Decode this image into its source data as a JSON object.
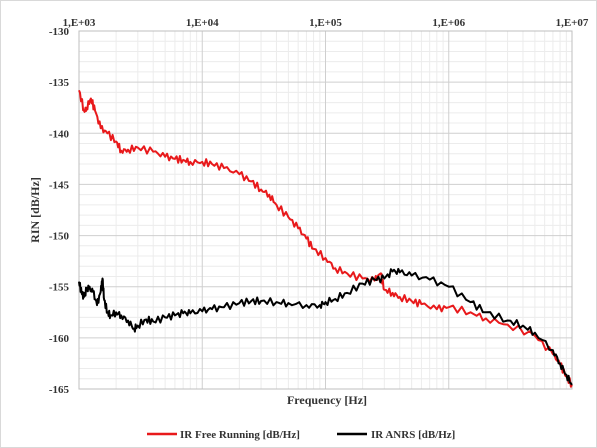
{
  "chart_data": {
    "type": "line",
    "xlabel": "Frequency  [Hz]",
    "ylabel": "RIN [dB/Hz]",
    "x_scale": "log",
    "xlim": [
      1000,
      10000000
    ],
    "ylim": [
      -165,
      -130
    ],
    "x_ticks": [
      {
        "value": 1000,
        "label": "1,E+03"
      },
      {
        "value": 10000,
        "label": "1,E+04"
      },
      {
        "value": 100000,
        "label": "1,E+05"
      },
      {
        "value": 1000000,
        "label": "1,E+06"
      },
      {
        "value": 10000000,
        "label": "1,E+07"
      }
    ],
    "y_ticks": [
      {
        "value": -130,
        "label": "-130"
      },
      {
        "value": -135,
        "label": "-135"
      },
      {
        "value": -140,
        "label": "-140"
      },
      {
        "value": -145,
        "label": "-145"
      },
      {
        "value": -150,
        "label": "-150"
      },
      {
        "value": -155,
        "label": "-155"
      },
      {
        "value": -160,
        "label": "-160"
      },
      {
        "value": -165,
        "label": "-165"
      }
    ],
    "grid": true,
    "minor_grid": true,
    "legend_position": "bottom",
    "series": [
      {
        "name": "IR Free Running [dB/Hz]",
        "color": "#e8191b",
        "x": [
          1000,
          1100,
          1150,
          1250,
          1350,
          1500,
          1700,
          2000,
          2200,
          2500,
          3000,
          4000,
          5000,
          6000,
          7000,
          8000,
          10000,
          12000,
          15000,
          20000,
          25000,
          30000,
          35000,
          40000,
          50000,
          60000,
          70000,
          80000,
          100000,
          120000,
          150000,
          200000,
          250000,
          280000,
          300000,
          350000,
          400000,
          500000,
          600000,
          800000,
          1000000,
          1500000,
          2000000,
          3000000,
          5000000,
          7000000,
          8000000,
          9000000,
          10000000
        ],
        "y": [
          -135.8,
          -137.8,
          -137.5,
          -136.6,
          -137.8,
          -139.5,
          -140,
          -140.8,
          -141.7,
          -141.6,
          -141.4,
          -141.8,
          -142.3,
          -142.5,
          -142.6,
          -142.8,
          -142.8,
          -143,
          -143.4,
          -144,
          -144.7,
          -145.5,
          -146,
          -147,
          -148.2,
          -149.3,
          -150.3,
          -151.3,
          -152.2,
          -153.2,
          -153.7,
          -154.2,
          -154.4,
          -153.7,
          -155.3,
          -155.6,
          -156,
          -156.4,
          -156.7,
          -157.2,
          -157,
          -157.5,
          -158.1,
          -158.7,
          -159.8,
          -161.6,
          -162.6,
          -163.8,
          -164.6
        ]
      },
      {
        "name": "IR ANRS [dB/Hz]",
        "color": "#000000",
        "x": [
          1000,
          1050,
          1100,
          1150,
          1200,
          1300,
          1400,
          1500,
          1550,
          1600,
          1700,
          1800,
          2000,
          2200,
          2500,
          2800,
          3000,
          3500,
          4000,
          5000,
          6000,
          7000,
          8000,
          10000,
          12000,
          15000,
          20000,
          25000,
          30000,
          40000,
          50000,
          70000,
          90000,
          100000,
          120000,
          150000,
          200000,
          250000,
          300000,
          350000,
          400000,
          500000,
          700000,
          1000000,
          1500000,
          2000000,
          3000000,
          4000000,
          5000000,
          7000000,
          8000000,
          9000000,
          10000000
        ],
        "y": [
          -154.5,
          -155.6,
          -156,
          -155.3,
          -155.2,
          -155.5,
          -156.8,
          -155.5,
          -154.2,
          -156.3,
          -157.5,
          -157.8,
          -157.5,
          -157.8,
          -158.3,
          -159.1,
          -158.8,
          -158.2,
          -158.4,
          -158,
          -157.8,
          -157.6,
          -157.6,
          -157.4,
          -157.2,
          -157,
          -156.6,
          -156.4,
          -156.4,
          -156.5,
          -156.6,
          -156.8,
          -156.8,
          -156.5,
          -156.2,
          -155.6,
          -154.7,
          -154.3,
          -154.2,
          -153.5,
          -153.6,
          -153.9,
          -154.3,
          -155,
          -156.5,
          -157.5,
          -158.3,
          -158.8,
          -159.5,
          -161.2,
          -162.5,
          -163.6,
          -164.6
        ]
      }
    ]
  }
}
